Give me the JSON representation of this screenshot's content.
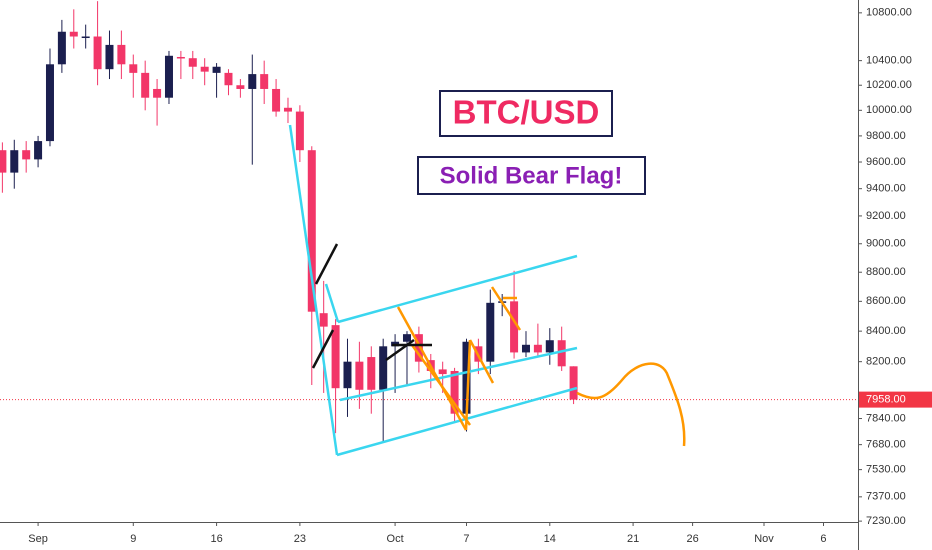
{
  "chart_data": {
    "type": "candlestick",
    "annotations": [
      "BTC/USD",
      "Solid Bear Flag!"
    ],
    "x": [
      -2,
      -1,
      0,
      1,
      2,
      3,
      4,
      5,
      6,
      7,
      8,
      9,
      10,
      11,
      12,
      13,
      14,
      15,
      16,
      17,
      18,
      19,
      20,
      21,
      22,
      23,
      24,
      25,
      26,
      27,
      28,
      29,
      30,
      31,
      32,
      33,
      34,
      35,
      36,
      37,
      38,
      39,
      40,
      41,
      42,
      43,
      44,
      45,
      46
    ],
    "open": [
      9690,
      9520,
      9690,
      9620,
      9760,
      10370,
      10640,
      10590,
      10600,
      10330,
      10530,
      10370,
      10300,
      10170,
      10100,
      10430,
      10420,
      10350,
      10300,
      10300,
      10200,
      10170,
      10290,
      10170,
      10020,
      9990,
      9690,
      8520,
      8440,
      8030,
      8200,
      8230,
      8020,
      8300,
      8330,
      8380,
      8210,
      8150,
      8140,
      7870,
      8300,
      8200,
      8590,
      8600,
      8260,
      8310,
      8260,
      8340,
      8170
    ],
    "high": [
      9750,
      9770,
      9760,
      9800,
      10500,
      10740,
      10830,
      10700,
      10900,
      10650,
      10650,
      10450,
      10400,
      10250,
      10480,
      10480,
      10480,
      10420,
      10380,
      10330,
      10250,
      10450,
      10400,
      10250,
      10100,
      10040,
      9720,
      8740,
      8480,
      8350,
      8330,
      8300,
      8350,
      8380,
      8400,
      8430,
      8250,
      8200,
      8160,
      8350,
      8350,
      8680,
      8650,
      8810,
      8400,
      8450,
      8420,
      8430,
      8170
    ],
    "low": [
      9370,
      9400,
      9520,
      9560,
      9720,
      10300,
      10500,
      10500,
      10200,
      10250,
      10250,
      10100,
      10000,
      9880,
      10050,
      10250,
      10250,
      10200,
      10100,
      10120,
      10100,
      9580,
      10050,
      9950,
      9900,
      9600,
      8050,
      8000,
      7750,
      7850,
      7900,
      7870,
      7700,
      8000,
      8050,
      8130,
      8030,
      8000,
      7820,
      7760,
      8120,
      8120,
      8500,
      8220,
      8230,
      8230,
      8180,
      8140,
      7930
    ],
    "close": [
      9520,
      9690,
      9620,
      9760,
      10370,
      10640,
      10600,
      10600,
      10330,
      10530,
      10370,
      10300,
      10100,
      10100,
      10440,
      10420,
      10350,
      10310,
      10350,
      10200,
      10170,
      10290,
      10170,
      9990,
      9990,
      9690,
      8530,
      8430,
      8030,
      8200,
      8020,
      8020,
      8300,
      8330,
      8380,
      8200,
      8140,
      8120,
      7870,
      8330,
      8200,
      8590,
      8600,
      8260,
      8310,
      8260,
      8340,
      8170,
      7958
    ],
    "up_color": "#1b1f4f",
    "down_color": "#f23668",
    "log_scale": true,
    "xlim": [
      -2.2,
      69.9
    ],
    "ylim": [
      7225,
      10910
    ],
    "xticks": [
      {
        "value": 1,
        "label": "Sep"
      },
      9,
      16,
      23,
      {
        "value": 31,
        "label": "Oct"
      },
      {
        "value": 37,
        "label": "7"
      },
      {
        "value": 44,
        "label": "14"
      },
      {
        "value": 51,
        "label": "21"
      },
      {
        "value": 56,
        "label": "26"
      },
      {
        "value": 62,
        "label": "Nov"
      },
      {
        "value": 67,
        "label": "6"
      }
    ],
    "yticks": [
      {
        "value": 10800,
        "label": "10800.00"
      },
      {
        "value": 10400,
        "label": "10400.00"
      },
      {
        "value": 10200,
        "label": "10200.00"
      },
      {
        "value": 10000,
        "label": "10000.00"
      },
      {
        "value": 9800,
        "label": "9800.00"
      },
      {
        "value": 9600,
        "label": "9600.00"
      },
      {
        "value": 9400,
        "label": "9400.00"
      },
      {
        "value": 9200,
        "label": "9200.00"
      },
      {
        "value": 9000,
        "label": "9000.00"
      },
      {
        "value": 8800,
        "label": "8800.00"
      },
      {
        "value": 8600,
        "label": "8600.00"
      },
      {
        "value": 8400,
        "label": "8400.00"
      },
      {
        "value": 8200,
        "label": "8200.00"
      },
      {
        "value": 7840,
        "label": "7840.00"
      },
      {
        "value": 7680,
        "label": "7680.00"
      },
      {
        "value": 7530,
        "label": "7530.00"
      },
      {
        "value": 7370,
        "label": "7370.00"
      },
      {
        "value": 7230,
        "label": "7230.00"
      }
    ],
    "last_price": {
      "value": 7958,
      "label": "7958.00"
    },
    "last_price_color": "#f23645"
  }
}
